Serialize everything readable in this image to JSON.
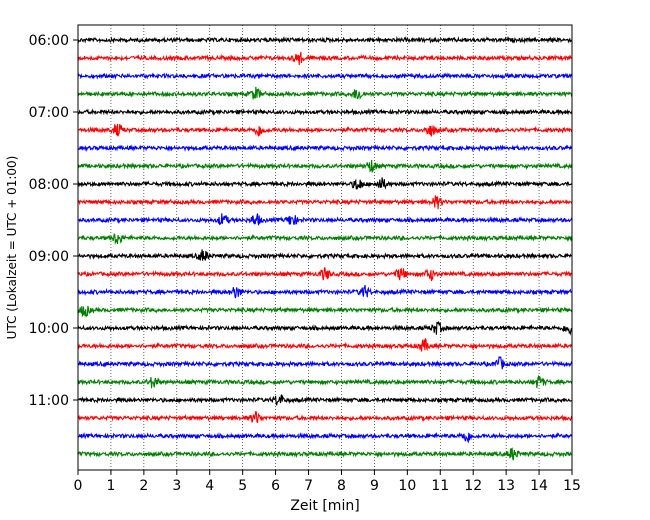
{
  "chart_data": {
    "type": "line",
    "title": "",
    "xlabel": "Zeit  [min]",
    "ylabel": "UTC (Lokalzeit = UTC + 01:00)",
    "xlim": [
      0,
      15
    ],
    "x_ticks": [
      "0",
      "1",
      "2",
      "3",
      "4",
      "5",
      "6",
      "7",
      "8",
      "9",
      "10",
      "11",
      "12",
      "13",
      "14",
      "15"
    ],
    "y_ticks": [
      "06:00",
      "07:00",
      "08:00",
      "09:00",
      "10:00",
      "11:00"
    ],
    "grid": "vertical dotted at each minute",
    "trace_interval_minutes": 15,
    "trace_colors": [
      "#000000",
      "#ff0000",
      "#0000ff",
      "#008000"
    ],
    "traces": [
      {
        "start": "06:00",
        "color": "#000000",
        "events": []
      },
      {
        "start": "06:15",
        "color": "#ff0000",
        "events": [
          6.7
        ]
      },
      {
        "start": "06:30",
        "color": "#0000ff",
        "events": []
      },
      {
        "start": "06:45",
        "color": "#008000",
        "events": [
          5.4,
          8.5
        ]
      },
      {
        "start": "07:00",
        "color": "#000000",
        "events": []
      },
      {
        "start": "07:15",
        "color": "#ff0000",
        "events": [
          1.2,
          5.5,
          10.7
        ]
      },
      {
        "start": "07:30",
        "color": "#0000ff",
        "events": []
      },
      {
        "start": "07:45",
        "color": "#008000",
        "events": [
          8.9
        ]
      },
      {
        "start": "08:00",
        "color": "#000000",
        "events": [
          8.5,
          9.2
        ]
      },
      {
        "start": "08:15",
        "color": "#ff0000",
        "events": [
          10.9
        ]
      },
      {
        "start": "08:30",
        "color": "#0000ff",
        "events": [
          4.4,
          5.4,
          6.5
        ]
      },
      {
        "start": "08:45",
        "color": "#008000",
        "events": [
          1.2
        ]
      },
      {
        "start": "09:00",
        "color": "#000000",
        "events": [
          3.8
        ]
      },
      {
        "start": "09:15",
        "color": "#ff0000",
        "events": [
          7.5,
          9.8,
          10.7
        ]
      },
      {
        "start": "09:30",
        "color": "#0000ff",
        "events": [
          4.8,
          8.7
        ]
      },
      {
        "start": "09:45",
        "color": "#008000",
        "events": [
          0.2
        ]
      },
      {
        "start": "10:00",
        "color": "#000000",
        "events": [
          10.9,
          14.9
        ]
      },
      {
        "start": "10:15",
        "color": "#ff0000",
        "events": [
          10.5
        ]
      },
      {
        "start": "10:30",
        "color": "#0000ff",
        "events": [
          12.8
        ]
      },
      {
        "start": "10:45",
        "color": "#008000",
        "events": [
          2.3,
          14.0
        ]
      },
      {
        "start": "11:00",
        "color": "#000000",
        "events": [
          6.1
        ]
      },
      {
        "start": "11:15",
        "color": "#ff0000",
        "events": [
          5.4
        ]
      },
      {
        "start": "11:30",
        "color": "#0000ff",
        "events": [
          11.8
        ]
      },
      {
        "start": "11:45",
        "color": "#008000",
        "events": [
          13.2
        ]
      }
    ]
  }
}
